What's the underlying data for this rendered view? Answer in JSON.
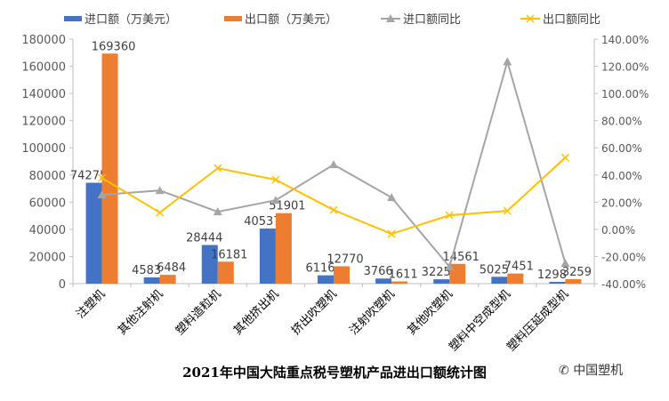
{
  "chart_data": {
    "type": "bar+line",
    "title": "2021年中国大陆重点税号塑机产品进出口额统计图",
    "categories": [
      "注塑机",
      "其他注射机",
      "塑料造粒机",
      "其他挤出机",
      "挤出吹塑机",
      "注射吹塑机",
      "其他吹塑机",
      "塑料中空成型机",
      "塑料压延成型机"
    ],
    "series": [
      {
        "name": "进口额（万美元）",
        "type": "bar",
        "axis": "left",
        "color": "#4472C4",
        "values": [
          74275,
          4583,
          28444,
          40537,
          6116,
          3766,
          3225,
          5025,
          1298
        ]
      },
      {
        "name": "出口额（万美元）",
        "type": "bar",
        "axis": "left",
        "color": "#ED7D31",
        "values": [
          169360,
          6484,
          16181,
          51901,
          12770,
          1611,
          14561,
          7451,
          3259
        ]
      },
      {
        "name": "进口额同比",
        "type": "line",
        "axis": "right",
        "color": "#A5A5A5",
        "marker": "triangle",
        "values": [
          25.4,
          28.6,
          12.9,
          21.4,
          47.6,
          23.4,
          -27.6,
          123.4,
          -25.0
        ]
      },
      {
        "name": "出口额同比",
        "type": "line",
        "axis": "right",
        "color": "#FFC000",
        "marker": "x",
        "values": [
          37.8,
          12.3,
          45.0,
          36.5,
          14.2,
          -3.4,
          10.3,
          13.6,
          52.8
        ]
      }
    ],
    "left_axis": {
      "ylim": [
        0,
        180000
      ],
      "ticks": [
        "0",
        "20000",
        "40000",
        "60000",
        "80000",
        "100000",
        "120000",
        "140000",
        "160000",
        "180000"
      ]
    },
    "right_axis": {
      "ylim": [
        -40,
        140
      ],
      "ticks": [
        "-40.00%",
        "-20.00%",
        "0.00%",
        "20.00%",
        "40.00%",
        "60.00%",
        "80.00%",
        "100.00%",
        "120.00%",
        "140.00%"
      ]
    },
    "legend": "top",
    "grid": false
  },
  "watermark": "中国塑机"
}
